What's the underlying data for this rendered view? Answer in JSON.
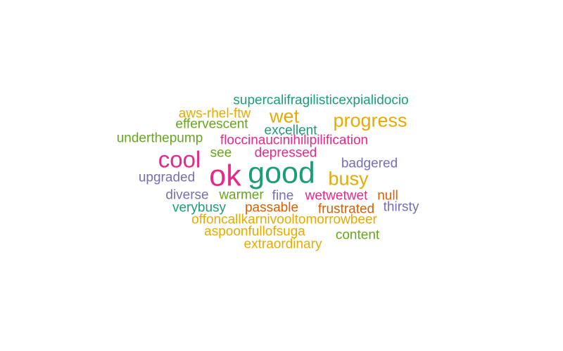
{
  "palette": {
    "teal": "#1b9e77",
    "orange": "#d95f02",
    "purple": "#7570b3",
    "pink": "#e7298a",
    "green": "#66a61e",
    "gold": "#e6ab02"
  },
  "words": [
    {
      "text": "supercalifragilisticexpialidocio",
      "color": "teal"
    },
    {
      "text": "aws-rhel-ftw",
      "color": "gold"
    },
    {
      "text": "wet",
      "color": "gold"
    },
    {
      "text": "progress",
      "color": "gold"
    },
    {
      "text": "effervescent",
      "color": "green"
    },
    {
      "text": "excellent",
      "color": "teal"
    },
    {
      "text": "underthepump",
      "color": "green"
    },
    {
      "text": "floccinaucinihilipilification",
      "color": "pink"
    },
    {
      "text": "cool",
      "color": "pink"
    },
    {
      "text": "see",
      "color": "green"
    },
    {
      "text": "depressed",
      "color": "pink"
    },
    {
      "text": "badgered",
      "color": "purple"
    },
    {
      "text": "ok",
      "color": "pink"
    },
    {
      "text": "good",
      "color": "teal"
    },
    {
      "text": "busy",
      "color": "gold"
    },
    {
      "text": "upgraded",
      "color": "purple"
    },
    {
      "text": "diverse",
      "color": "purple"
    },
    {
      "text": "warmer",
      "color": "green"
    },
    {
      "text": "fine",
      "color": "purple"
    },
    {
      "text": "wetwetwet",
      "color": "pink"
    },
    {
      "text": "null",
      "color": "orange"
    },
    {
      "text": "verybusy",
      "color": "teal"
    },
    {
      "text": "passable",
      "color": "orange"
    },
    {
      "text": "frustrated",
      "color": "orange"
    },
    {
      "text": "thirsty",
      "color": "purple"
    },
    {
      "text": "offoncallkarnivooltomorrowbeer",
      "color": "gold"
    },
    {
      "text": "aspoonfullofsuga",
      "color": "gold"
    },
    {
      "text": "content",
      "color": "green"
    },
    {
      "text": "extraordinary",
      "color": "gold"
    }
  ]
}
